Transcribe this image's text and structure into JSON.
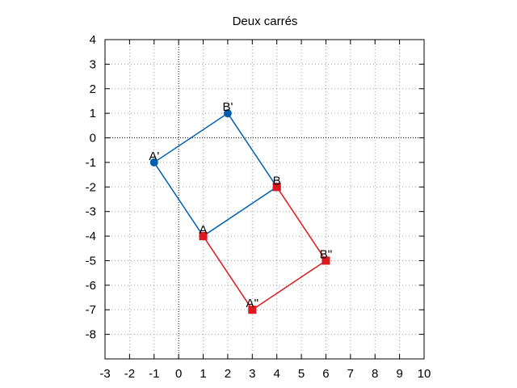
{
  "chart_data": {
    "type": "line",
    "title": "Deux carrés",
    "xlabel": "",
    "ylabel": "",
    "xlim": [
      -3,
      10
    ],
    "ylim": [
      -9,
      4
    ],
    "xticks": [
      "-3",
      "-2",
      "-1",
      "0",
      "1",
      "2",
      "3",
      "4",
      "5",
      "6",
      "7",
      "8",
      "9",
      "10"
    ],
    "yticks": [
      "-8",
      "-7",
      "-6",
      "-5",
      "-4",
      "-3",
      "-2",
      "-1",
      "0",
      "1",
      "2",
      "3",
      "4"
    ],
    "grid": true,
    "zero_axes": true,
    "series": [
      {
        "color": "#0060ad",
        "marker": "circle",
        "points": [
          {
            "label": "A",
            "x": 1,
            "y": -4,
            "marker": "square"
          },
          {
            "label": "B",
            "x": 4,
            "y": -2,
            "marker": "square"
          },
          {
            "label": "B'",
            "x": 2,
            "y": 1,
            "marker": "circle"
          },
          {
            "label": "A'",
            "x": -1,
            "y": -1,
            "marker": "circle"
          },
          {
            "label": "",
            "x": 1,
            "y": -4,
            "marker": "square"
          }
        ]
      },
      {
        "color": "#dd181f",
        "marker": "square",
        "points": [
          {
            "label": "",
            "x": 1,
            "y": -4,
            "marker": "square"
          },
          {
            "label": "A''",
            "x": 3,
            "y": -7,
            "marker": "square"
          },
          {
            "label": "B''",
            "x": 6,
            "y": -5,
            "marker": "square"
          },
          {
            "label": "",
            "x": 4,
            "y": -2,
            "marker": "square"
          }
        ]
      }
    ]
  }
}
